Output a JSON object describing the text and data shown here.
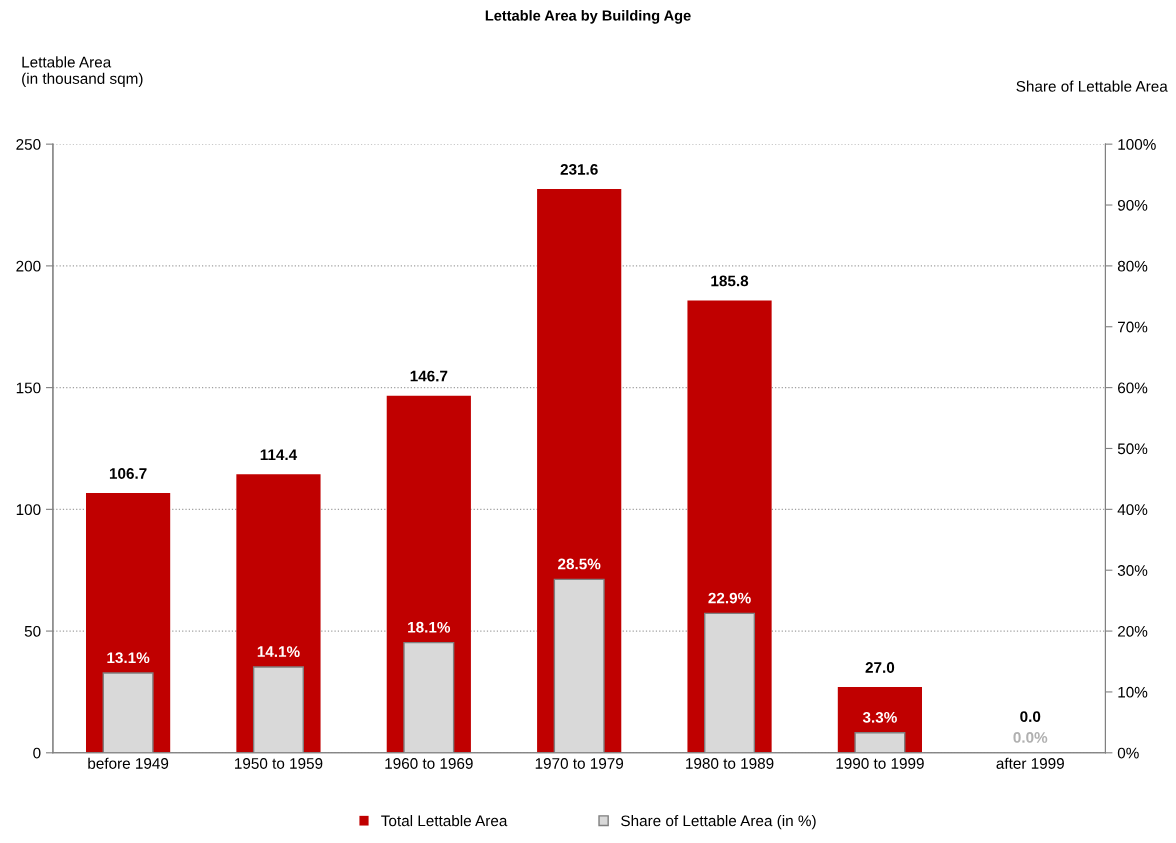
{
  "chart_data": {
    "type": "bar",
    "title": "Lettable Area by Building Age",
    "ylabel": "Lettable Area\n(in thousand sqm)",
    "y2label": "Share of Lettable Area",
    "categories": [
      "before 1949",
      "1950 to 1959",
      "1960 to 1969",
      "1970 to 1979",
      "1980 to 1989",
      "1990 to 1999",
      "after 1999"
    ],
    "series": [
      {
        "name": "Total Lettable Area",
        "color": "#c00000",
        "values": [
          106.7,
          114.4,
          146.7,
          231.6,
          185.8,
          27.0,
          0.0
        ],
        "value_labels": [
          "106.7",
          "114.4",
          "146.7",
          "231.6",
          "185.8",
          "27.0",
          "0.0"
        ]
      },
      {
        "name": "Share of Lettable Area (in %)",
        "color": "#d9d9d9",
        "axis": "y2",
        "values": [
          13.1,
          14.1,
          18.1,
          28.5,
          22.9,
          3.3,
          0.0
        ],
        "value_labels": [
          "13.1%",
          "14.1%",
          "18.1%",
          "28.5%",
          "22.9%",
          "3.3%",
          "0.0%"
        ]
      }
    ],
    "ylim": [
      0,
      250
    ],
    "yticks": [
      0,
      50,
      100,
      150,
      200,
      250
    ],
    "y2lim": [
      0,
      100
    ],
    "y2ticks": [
      {
        "value": 0,
        "label": "0%"
      },
      {
        "value": 10,
        "label": "10%"
      },
      {
        "value": 20,
        "label": "20%"
      },
      {
        "value": 30,
        "label": "30%"
      },
      {
        "value": 40,
        "label": "40%"
      },
      {
        "value": 50,
        "label": "50%"
      },
      {
        "value": 60,
        "label": "60%"
      },
      {
        "value": 70,
        "label": "70%"
      },
      {
        "value": 80,
        "label": "80%"
      },
      {
        "value": 90,
        "label": "90%"
      },
      {
        "value": 100,
        "label": "100%"
      }
    ],
    "grid": "y",
    "legend": "bottom"
  }
}
